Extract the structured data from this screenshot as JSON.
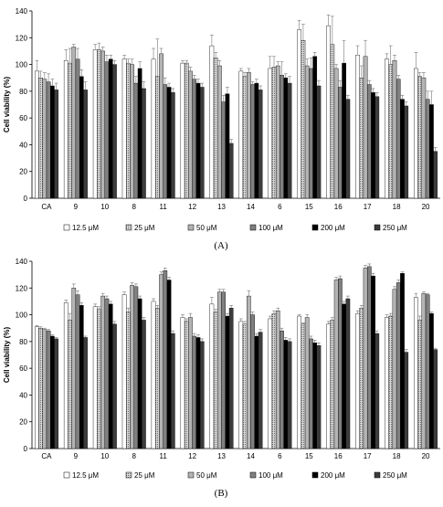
{
  "chart_data": [
    {
      "type": "bar",
      "panel_label": "(A)",
      "ylabel": "Cell viability (%)",
      "ylim": [
        0,
        140
      ],
      "yticks": [
        "0",
        "20",
        "40",
        "60",
        "80",
        "100",
        "120",
        "140"
      ],
      "categories": [
        "CA",
        "9",
        "10",
        "8",
        "11",
        "12",
        "13",
        "14",
        "6",
        "15",
        "16",
        "17",
        "18",
        "20"
      ],
      "series": [
        {
          "name": "12.5 μM",
          "values": [
            95,
            103,
            111,
            104,
            104,
            101,
            114,
            95,
            97,
            126,
            129,
            107,
            104,
            97
          ],
          "errors": [
            8,
            8,
            4,
            3,
            8,
            2,
            8,
            2,
            9,
            7,
            8,
            7,
            4,
            12
          ]
        },
        {
          "name": "25 μM",
          "values": [
            90,
            101,
            111,
            101,
            91,
            101,
            105,
            91,
            98,
            118,
            115,
            90,
            100,
            91
          ],
          "errors": [
            5,
            11,
            5,
            3,
            28,
            2,
            4,
            3,
            8,
            12,
            21,
            9,
            14,
            3
          ]
        },
        {
          "name": "50 μM",
          "values": [
            89,
            113,
            110,
            100,
            108,
            95,
            99,
            94,
            99,
            99,
            97,
            106,
            103,
            90
          ],
          "errors": [
            5,
            2,
            3,
            4,
            4,
            3,
            4,
            3,
            3,
            5,
            3,
            12,
            4,
            4
          ]
        },
        {
          "name": "100 μM",
          "values": [
            87,
            104,
            102,
            86,
            85,
            89,
            72,
            85,
            92,
            97,
            83,
            85,
            89,
            74
          ],
          "errors": [
            6,
            8,
            5,
            5,
            5,
            3,
            5,
            2,
            10,
            8,
            5,
            3,
            3,
            6
          ]
        },
        {
          "name": "200 μM",
          "values": [
            84,
            91,
            104,
            97,
            83,
            86,
            78,
            86,
            90,
            106,
            101,
            79,
            74,
            70
          ],
          "errors": [
            5,
            5,
            3,
            5,
            3,
            3,
            5,
            3,
            3,
            3,
            17,
            3,
            3,
            10
          ]
        },
        {
          "name": "250 μM",
          "values": [
            81,
            81,
            100,
            82,
            79,
            83,
            41,
            81,
            86,
            84,
            74,
            76,
            69,
            35
          ],
          "errors": [
            5,
            6,
            3,
            5,
            3,
            3,
            3,
            3,
            5,
            4,
            3,
            3,
            3,
            3
          ]
        }
      ],
      "grid": false,
      "legend": "bottom"
    },
    {
      "type": "bar",
      "panel_label": "(B)",
      "ylabel": "Cell viability (%)",
      "ylim": [
        0,
        140
      ],
      "yticks": [
        "0",
        "20",
        "40",
        "60",
        "80",
        "100",
        "120",
        "140"
      ],
      "categories": [
        "CA",
        "9",
        "10",
        "8",
        "11",
        "12",
        "13",
        "14",
        "6",
        "15",
        "16",
        "17",
        "18",
        "20"
      ],
      "series": [
        {
          "name": "12.5 μM",
          "values": [
            91,
            109,
            106,
            115,
            110,
            98,
            108,
            95,
            97,
            99,
            93,
            101,
            98,
            113
          ],
          "errors": [
            1,
            2,
            2,
            2,
            2,
            2,
            5,
            2,
            2,
            1,
            2,
            2,
            2,
            3
          ]
        },
        {
          "name": "25 μM",
          "values": [
            90,
            96,
            104,
            102,
            105,
            95,
            102,
            93,
            101,
            93,
            96,
            105,
            99,
            96
          ],
          "errors": [
            1,
            5,
            2,
            3,
            2,
            2,
            2,
            2,
            2,
            1,
            2,
            2,
            2,
            3
          ]
        },
        {
          "name": "50 μM",
          "values": [
            89,
            120,
            114,
            122,
            130,
            98,
            117,
            114,
            103,
            98,
            126,
            135,
            119,
            116
          ],
          "errors": [
            1,
            3,
            2,
            2,
            2,
            3,
            2,
            4,
            2,
            2,
            2,
            2,
            2,
            1
          ]
        },
        {
          "name": "100 μM",
          "values": [
            88,
            115,
            112,
            121,
            133,
            84,
            117,
            100,
            88,
            82,
            127,
            136,
            124,
            115
          ],
          "errors": [
            1,
            3,
            2,
            2,
            2,
            2,
            2,
            2,
            2,
            2,
            2,
            2,
            2,
            1
          ]
        },
        {
          "name": "200 μM",
          "values": [
            84,
            107,
            108,
            112,
            126,
            83,
            99,
            84,
            81,
            79,
            108,
            129,
            131,
            101
          ],
          "errors": [
            1,
            2,
            2,
            2,
            2,
            2,
            2,
            2,
            2,
            2,
            2,
            2,
            1,
            1
          ]
        },
        {
          "name": "250 μM",
          "values": [
            82,
            83,
            93,
            96,
            86,
            80,
            105,
            87,
            80,
            77,
            112,
            86,
            72,
            74
          ],
          "errors": [
            1,
            1,
            2,
            2,
            2,
            2,
            2,
            2,
            2,
            2,
            2,
            2,
            2,
            1
          ]
        }
      ],
      "grid": false,
      "legend": "bottom"
    }
  ],
  "series_styles": [
    {
      "fill": "#ffffff",
      "pattern": "none"
    },
    {
      "fill": "#cfcfcf",
      "pattern": "dots"
    },
    {
      "fill": "#b4b4b4",
      "pattern": "none"
    },
    {
      "fill": "#808080",
      "pattern": "none"
    },
    {
      "fill": "#000000",
      "pattern": "none"
    },
    {
      "fill": "#3c3c3c",
      "pattern": "none"
    }
  ]
}
